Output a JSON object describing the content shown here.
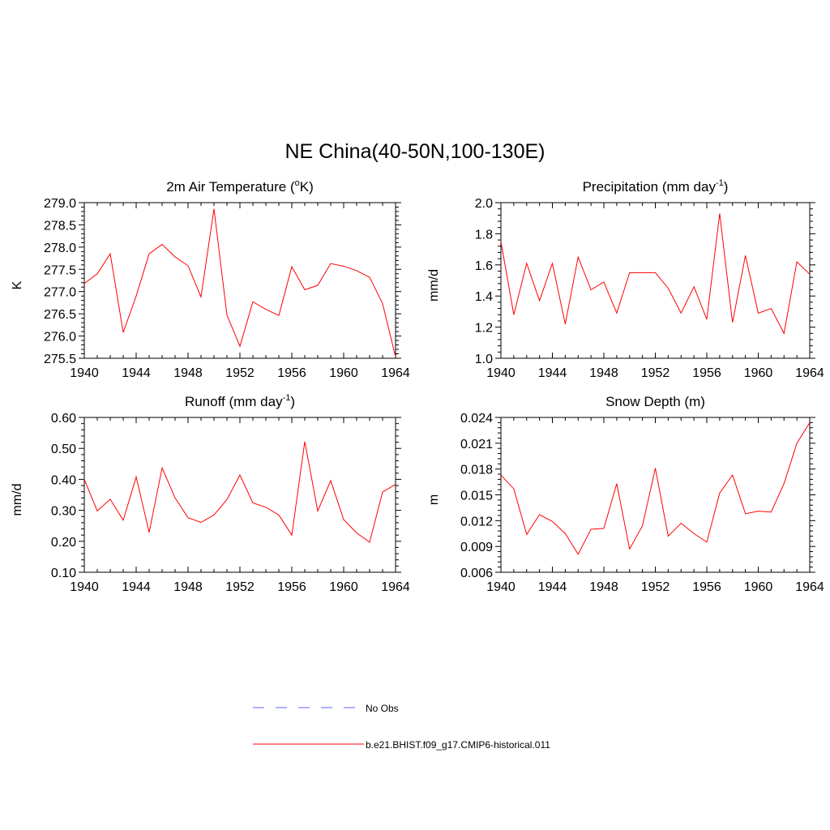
{
  "page": {
    "title": "NE China(40-50N,100-130E)"
  },
  "legend": {
    "obs_label": "No Obs",
    "obs_color": "#8080ff",
    "model_label": "b.e21.BHIST.f09_g17.CMIP6-historical.011",
    "model_color": "#ff0000"
  },
  "chart_data": [
    {
      "type": "line",
      "title_main": "2m Air Temperature (",
      "title_sup": "o",
      "title_tail": "K)",
      "ylabel": "K",
      "xlim": [
        1940,
        1964
      ],
      "ylim": [
        275.5,
        279.0
      ],
      "x_ticks": [
        "1940",
        "1944",
        "1948",
        "1952",
        "1956",
        "1960",
        "1964"
      ],
      "y_ticks": [
        "275.5",
        "276.0",
        "276.5",
        "277.0",
        "277.5",
        "278.0",
        "278.5",
        "279.0"
      ],
      "series": [
        {
          "name": "b.e21.BHIST.f09_g17.CMIP6-historical.011",
          "color": "#ff0000",
          "x": [
            1940,
            1941,
            1942,
            1943,
            1944,
            1945,
            1946,
            1947,
            1948,
            1949,
            1950,
            1951,
            1952,
            1953,
            1954,
            1955,
            1956,
            1957,
            1958,
            1959,
            1960,
            1961,
            1962,
            1963,
            1964
          ],
          "y": [
            277.18,
            277.4,
            277.85,
            276.08,
            276.9,
            277.85,
            278.06,
            277.78,
            277.58,
            276.88,
            278.86,
            276.47,
            275.77,
            276.77,
            276.6,
            276.46,
            277.56,
            277.04,
            277.14,
            277.63,
            277.57,
            277.47,
            277.32,
            276.73,
            275.53
          ]
        }
      ]
    },
    {
      "type": "line",
      "title_main": "Precipitation (mm day",
      "title_sup": "-1",
      "title_tail": ")",
      "ylabel": "mm/d",
      "xlim": [
        1940,
        1964
      ],
      "ylim": [
        1.0,
        2.0
      ],
      "x_ticks": [
        "1940",
        "1944",
        "1948",
        "1952",
        "1956",
        "1960",
        "1964"
      ],
      "y_ticks": [
        "1.0",
        "1.2",
        "1.4",
        "1.6",
        "1.8",
        "2.0"
      ],
      "series": [
        {
          "name": "b.e21.BHIST.f09_g17.CMIP6-historical.011",
          "color": "#ff0000",
          "x": [
            1940,
            1941,
            1942,
            1943,
            1944,
            1945,
            1946,
            1947,
            1948,
            1949,
            1950,
            1951,
            1952,
            1953,
            1954,
            1955,
            1956,
            1957,
            1958,
            1959,
            1960,
            1961,
            1962,
            1963,
            1964
          ],
          "y": [
            1.75,
            1.28,
            1.61,
            1.37,
            1.61,
            1.22,
            1.65,
            1.44,
            1.49,
            1.29,
            1.55,
            1.55,
            1.55,
            1.45,
            1.29,
            1.46,
            1.25,
            1.93,
            1.23,
            1.66,
            1.29,
            1.32,
            1.16,
            1.62,
            1.54
          ]
        }
      ]
    },
    {
      "type": "line",
      "title_main": "Runoff (mm day",
      "title_sup": "-1",
      "title_tail": ")",
      "ylabel": "mm/d",
      "xlim": [
        1940,
        1964
      ],
      "ylim": [
        0.1,
        0.6
      ],
      "x_ticks": [
        "1940",
        "1944",
        "1948",
        "1952",
        "1956",
        "1960",
        "1964"
      ],
      "y_ticks": [
        "0.10",
        "0.20",
        "0.30",
        "0.40",
        "0.50",
        "0.60"
      ],
      "series": [
        {
          "name": "b.e21.BHIST.f09_g17.CMIP6-historical.011",
          "color": "#ff0000",
          "x": [
            1940,
            1941,
            1942,
            1943,
            1944,
            1945,
            1946,
            1947,
            1948,
            1949,
            1950,
            1951,
            1952,
            1953,
            1954,
            1955,
            1956,
            1957,
            1958,
            1959,
            1960,
            1961,
            1962,
            1963,
            1964
          ],
          "y": [
            0.4,
            0.298,
            0.336,
            0.268,
            0.408,
            0.229,
            0.437,
            0.34,
            0.276,
            0.261,
            0.285,
            0.335,
            0.414,
            0.324,
            0.31,
            0.285,
            0.22,
            0.522,
            0.298,
            0.396,
            0.27,
            0.227,
            0.197,
            0.359,
            0.384
          ]
        }
      ]
    },
    {
      "type": "line",
      "title_main": "Snow Depth (m)",
      "title_sup": "",
      "title_tail": "",
      "ylabel": "m",
      "xlim": [
        1940,
        1964
      ],
      "ylim": [
        0.006,
        0.024
      ],
      "x_ticks": [
        "1940",
        "1944",
        "1948",
        "1952",
        "1956",
        "1960",
        "1964"
      ],
      "y_ticks": [
        "0.006",
        "0.009",
        "0.012",
        "0.015",
        "0.018",
        "0.021",
        "0.024"
      ],
      "series": [
        {
          "name": "b.e21.BHIST.f09_g17.CMIP6-historical.011",
          "color": "#ff0000",
          "x": [
            1940,
            1941,
            1942,
            1943,
            1944,
            1945,
            1946,
            1947,
            1948,
            1949,
            1950,
            1951,
            1952,
            1953,
            1954,
            1955,
            1956,
            1957,
            1958,
            1959,
            1960,
            1961,
            1962,
            1963,
            1964
          ],
          "y": [
            0.0173,
            0.0157,
            0.0104,
            0.0127,
            0.0119,
            0.0105,
            0.0081,
            0.011,
            0.0111,
            0.0163,
            0.0087,
            0.0114,
            0.0181,
            0.0102,
            0.0117,
            0.0105,
            0.0095,
            0.0152,
            0.0173,
            0.0128,
            0.0131,
            0.013,
            0.0163,
            0.021,
            0.0234
          ]
        }
      ]
    }
  ]
}
